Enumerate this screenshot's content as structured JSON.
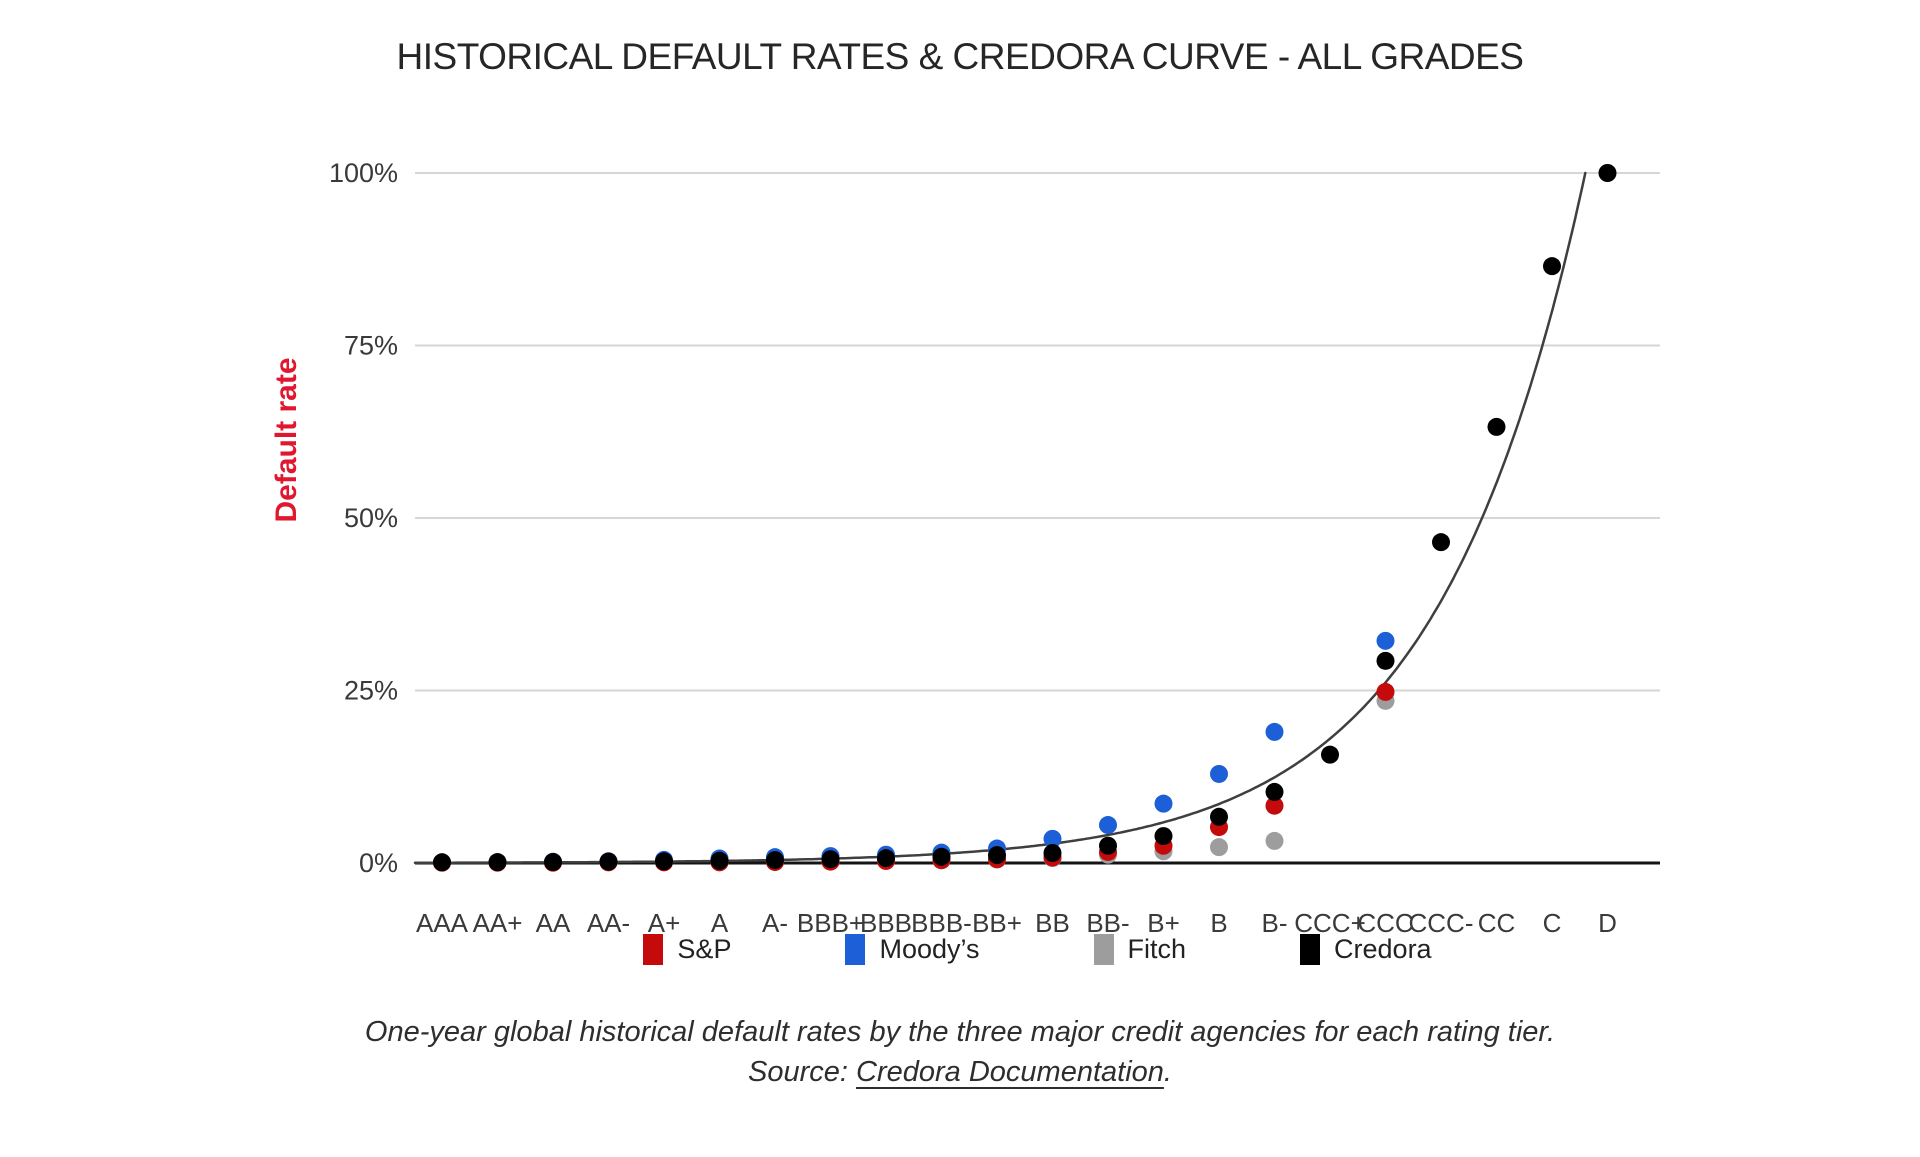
{
  "title": "HISTORICAL DEFAULT RATES & CREDORA CURVE - ALL GRADES",
  "y_axis_title": "Default rate",
  "caption": {
    "line1": "One-year global historical default rates by the three major credit agencies for each rating tier.",
    "source_prefix": "Source: ",
    "source_link": "Credora Documentation",
    "source_suffix": "."
  },
  "colors": {
    "background": "#ffffff",
    "title_text": "#262626",
    "axis_label_red": "#e0172e",
    "tick_text": "#3a3a3a",
    "gridline": "#d6d6d6",
    "axis_line": "#141414",
    "curve": "#3f3f3f"
  },
  "chart_data": {
    "type": "scatter",
    "title": "HISTORICAL DEFAULT RATES & CREDORA CURVE - ALL GRADES",
    "ylabel": "Default rate",
    "xlabel": "",
    "ylim": [
      0,
      100
    ],
    "grid": "horizontal",
    "legend_position": "bottom",
    "y_ticks": [
      {
        "value": 0,
        "label": "0%"
      },
      {
        "value": 25,
        "label": "25%"
      },
      {
        "value": 50,
        "label": "50%"
      },
      {
        "value": 75,
        "label": "75%"
      },
      {
        "value": 100,
        "label": "100%"
      }
    ],
    "categories": [
      "AAA",
      "AA+",
      "AA",
      "AA-",
      "A+",
      "A",
      "A-",
      "BBB+",
      "BBB",
      "BBB-",
      "BB+",
      "BB",
      "BB-",
      "B+",
      "B",
      "B-",
      "CCC+",
      "CCC",
      "CCC-",
      "CC",
      "C",
      "D"
    ],
    "series": [
      {
        "name": "S&P",
        "color": "#c40a0a",
        "values": [
          0.05,
          0.05,
          0.05,
          0.1,
          0.1,
          0.1,
          0.15,
          0.2,
          0.3,
          0.4,
          0.55,
          0.8,
          1.6,
          2.5,
          5.2,
          8.3,
          null,
          24.8,
          null,
          null,
          null,
          null
        ]
      },
      {
        "name": "Moody’s",
        "color": "#1d5fd6",
        "values": [
          0.1,
          0.12,
          0.18,
          0.25,
          0.45,
          0.65,
          0.85,
          1.0,
          1.2,
          1.5,
          2.1,
          3.5,
          5.5,
          8.6,
          12.9,
          19.0,
          null,
          32.2,
          null,
          null,
          null,
          null
        ]
      },
      {
        "name": "Fitch",
        "color": "#9d9d9d",
        "values": [
          0.05,
          0.05,
          0.05,
          0.1,
          0.1,
          0.1,
          0.15,
          0.2,
          0.3,
          0.4,
          0.5,
          0.7,
          1.2,
          1.7,
          2.3,
          3.2,
          null,
          23.5,
          null,
          null,
          null,
          null
        ]
      },
      {
        "name": "Credora",
        "color": "#000000",
        "values": [
          0.1,
          0.12,
          0.15,
          0.2,
          0.25,
          0.32,
          0.42,
          0.55,
          0.7,
          0.9,
          1.15,
          1.45,
          2.5,
          3.9,
          6.7,
          10.3,
          15.7,
          29.3,
          46.5,
          63.2,
          86.5,
          100
        ]
      }
    ],
    "curve": {
      "name": "Credora curve",
      "description": "Smooth exponential fit reaching 100% just before grade D",
      "formula": "value(i) = 100 * exp(b * (i - i100)), i = category index",
      "b": 0.3725,
      "i100": 20.6,
      "color": "#3f3f3f"
    },
    "marker_radius": 9,
    "draw_order": [
      "Fitch",
      "Moody’s",
      "S&P",
      "Credora"
    ]
  }
}
